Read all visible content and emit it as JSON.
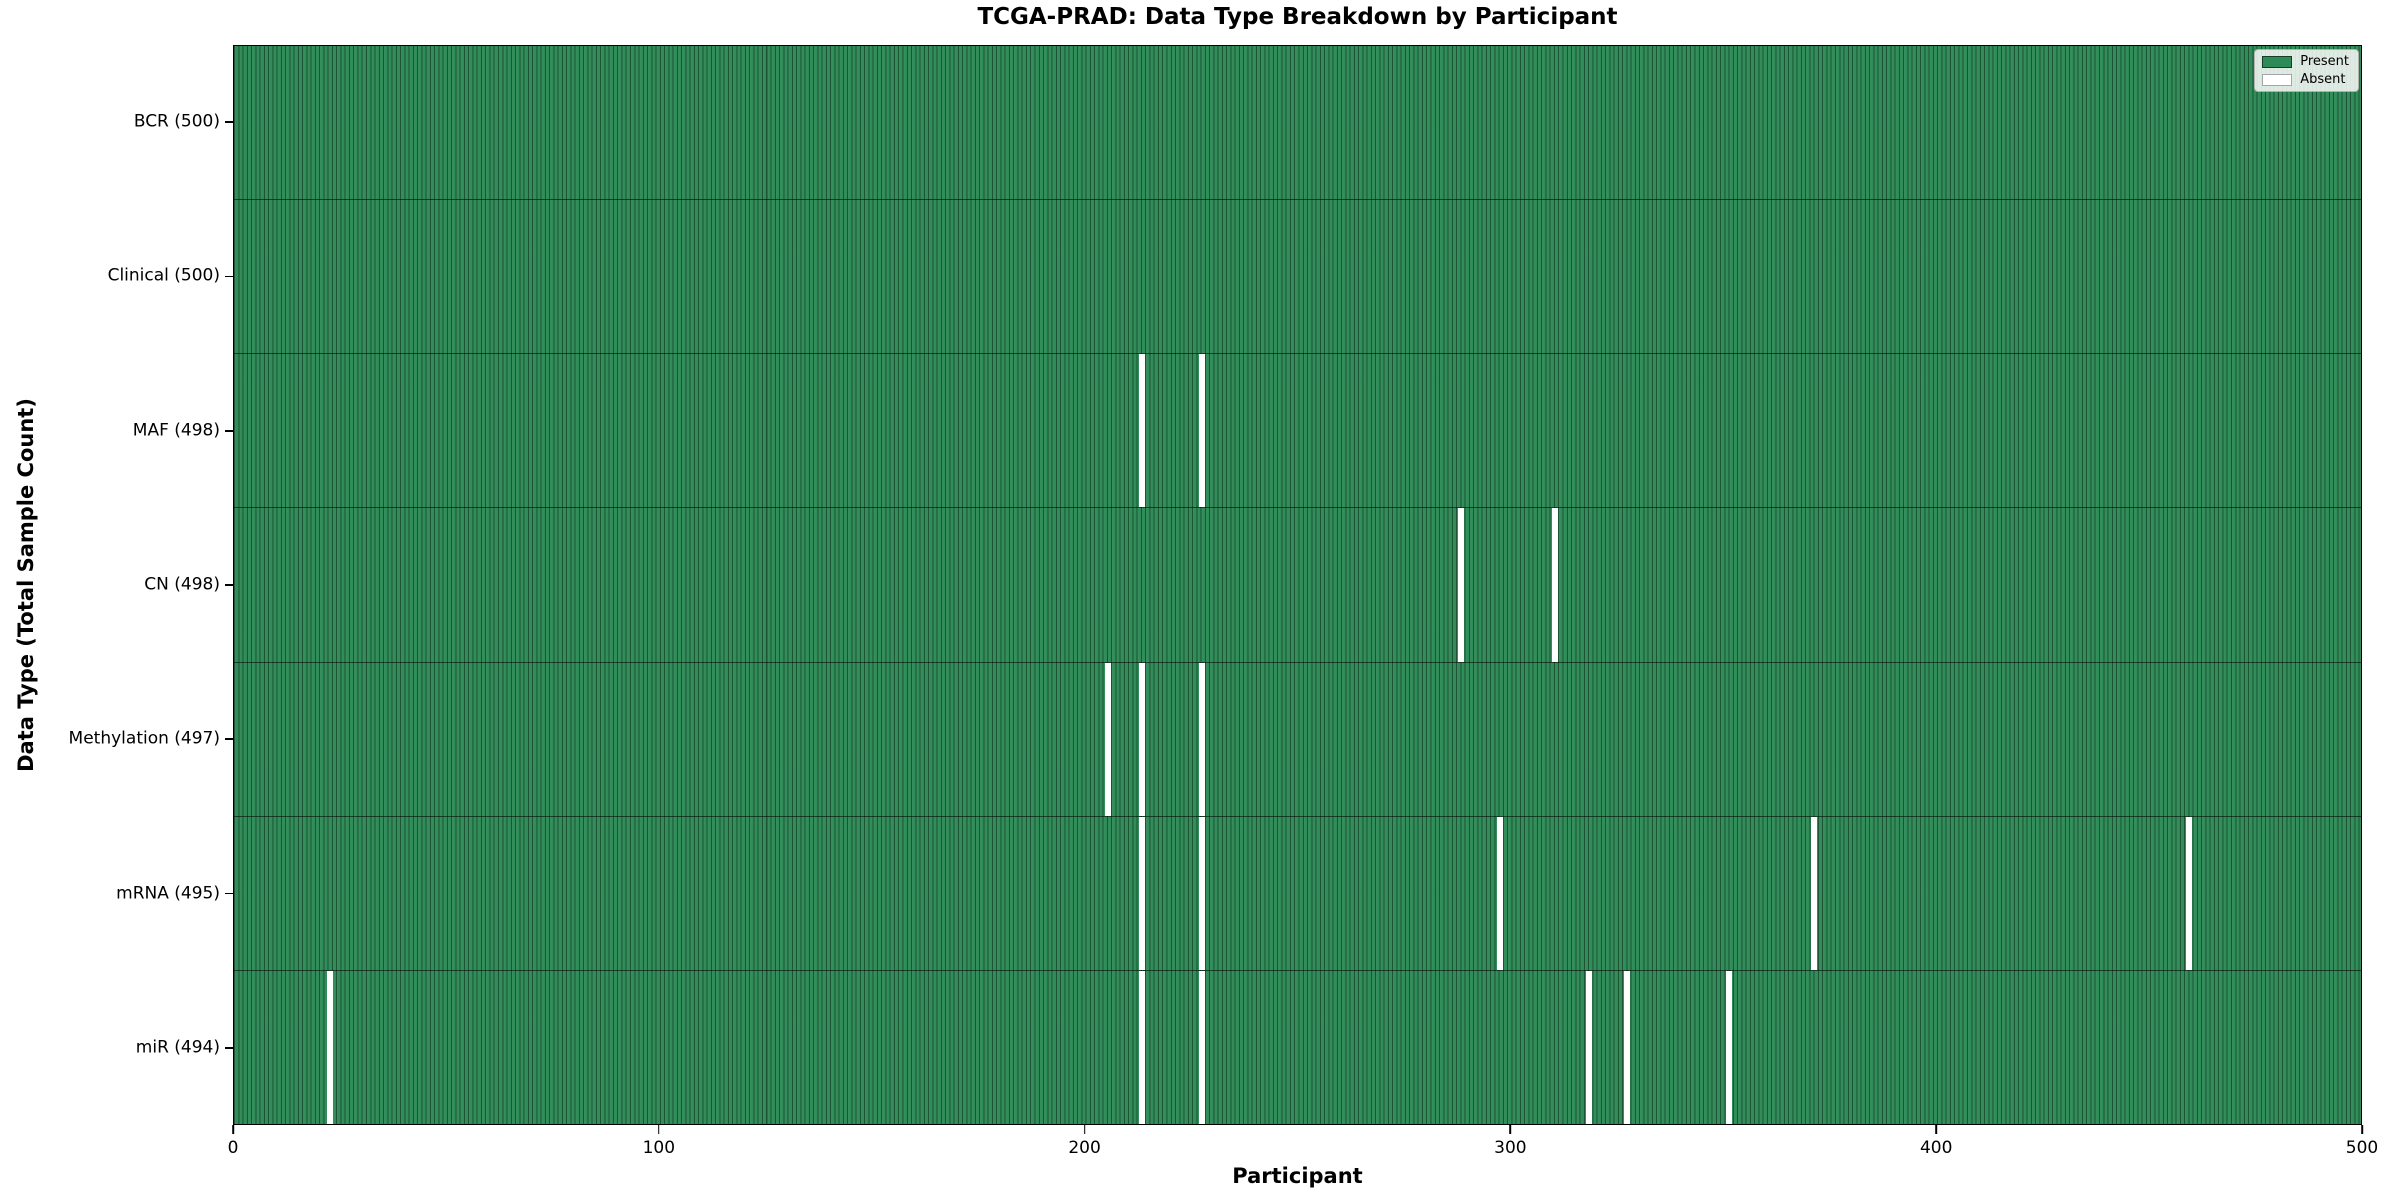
{
  "title": "TCGA-PRAD: Data Type Breakdown by Participant",
  "x_axis": {
    "label": "Participant",
    "ticks": [
      0,
      100,
      200,
      300,
      400,
      500
    ]
  },
  "y_axis": {
    "label": "Data Type (Total Sample Count)"
  },
  "legend": {
    "items": [
      {
        "label": "Present",
        "color": "#2e8b57"
      },
      {
        "label": "Absent",
        "color": "#ffffff"
      }
    ]
  },
  "colors": {
    "present": "#2e8b57",
    "absent": "#ffffff",
    "cell_edge": "rgba(0,0,0,0.40)",
    "row_divider": "rgba(0,0,0,0.55)",
    "spine": "#000000"
  },
  "chart_data": {
    "type": "heatmap",
    "title": "TCGA-PRAD: Data Type Breakdown by Participant",
    "xlabel": "Participant",
    "ylabel": "Data Type (Total Sample Count)",
    "x_range": [
      0,
      500
    ],
    "x_ticks": [
      0,
      100,
      200,
      300,
      400,
      500
    ],
    "legend_entries": [
      "Present",
      "Absent"
    ],
    "legend_position": "upper right",
    "rows": [
      {
        "label": "BCR (500)",
        "name": "BCR",
        "total": 500,
        "absent_participants": []
      },
      {
        "label": "Clinical (500)",
        "name": "Clinical",
        "total": 500,
        "absent_participants": []
      },
      {
        "label": "MAF (498)",
        "name": "MAF",
        "total": 498,
        "absent_participants": [
          213,
          227
        ]
      },
      {
        "label": "CN (498)",
        "name": "CN",
        "total": 498,
        "absent_participants": [
          288,
          310
        ]
      },
      {
        "label": "Methylation (497)",
        "name": "Methylation",
        "total": 497,
        "absent_participants": [
          205,
          213,
          227
        ]
      },
      {
        "label": "mRNA (495)",
        "name": "mRNA",
        "total": 495,
        "absent_participants": [
          213,
          227,
          297,
          371,
          459
        ]
      },
      {
        "label": "miR (494)",
        "name": "miR",
        "total": 494,
        "absent_participants": [
          22,
          213,
          227,
          318,
          327,
          351
        ]
      }
    ]
  }
}
